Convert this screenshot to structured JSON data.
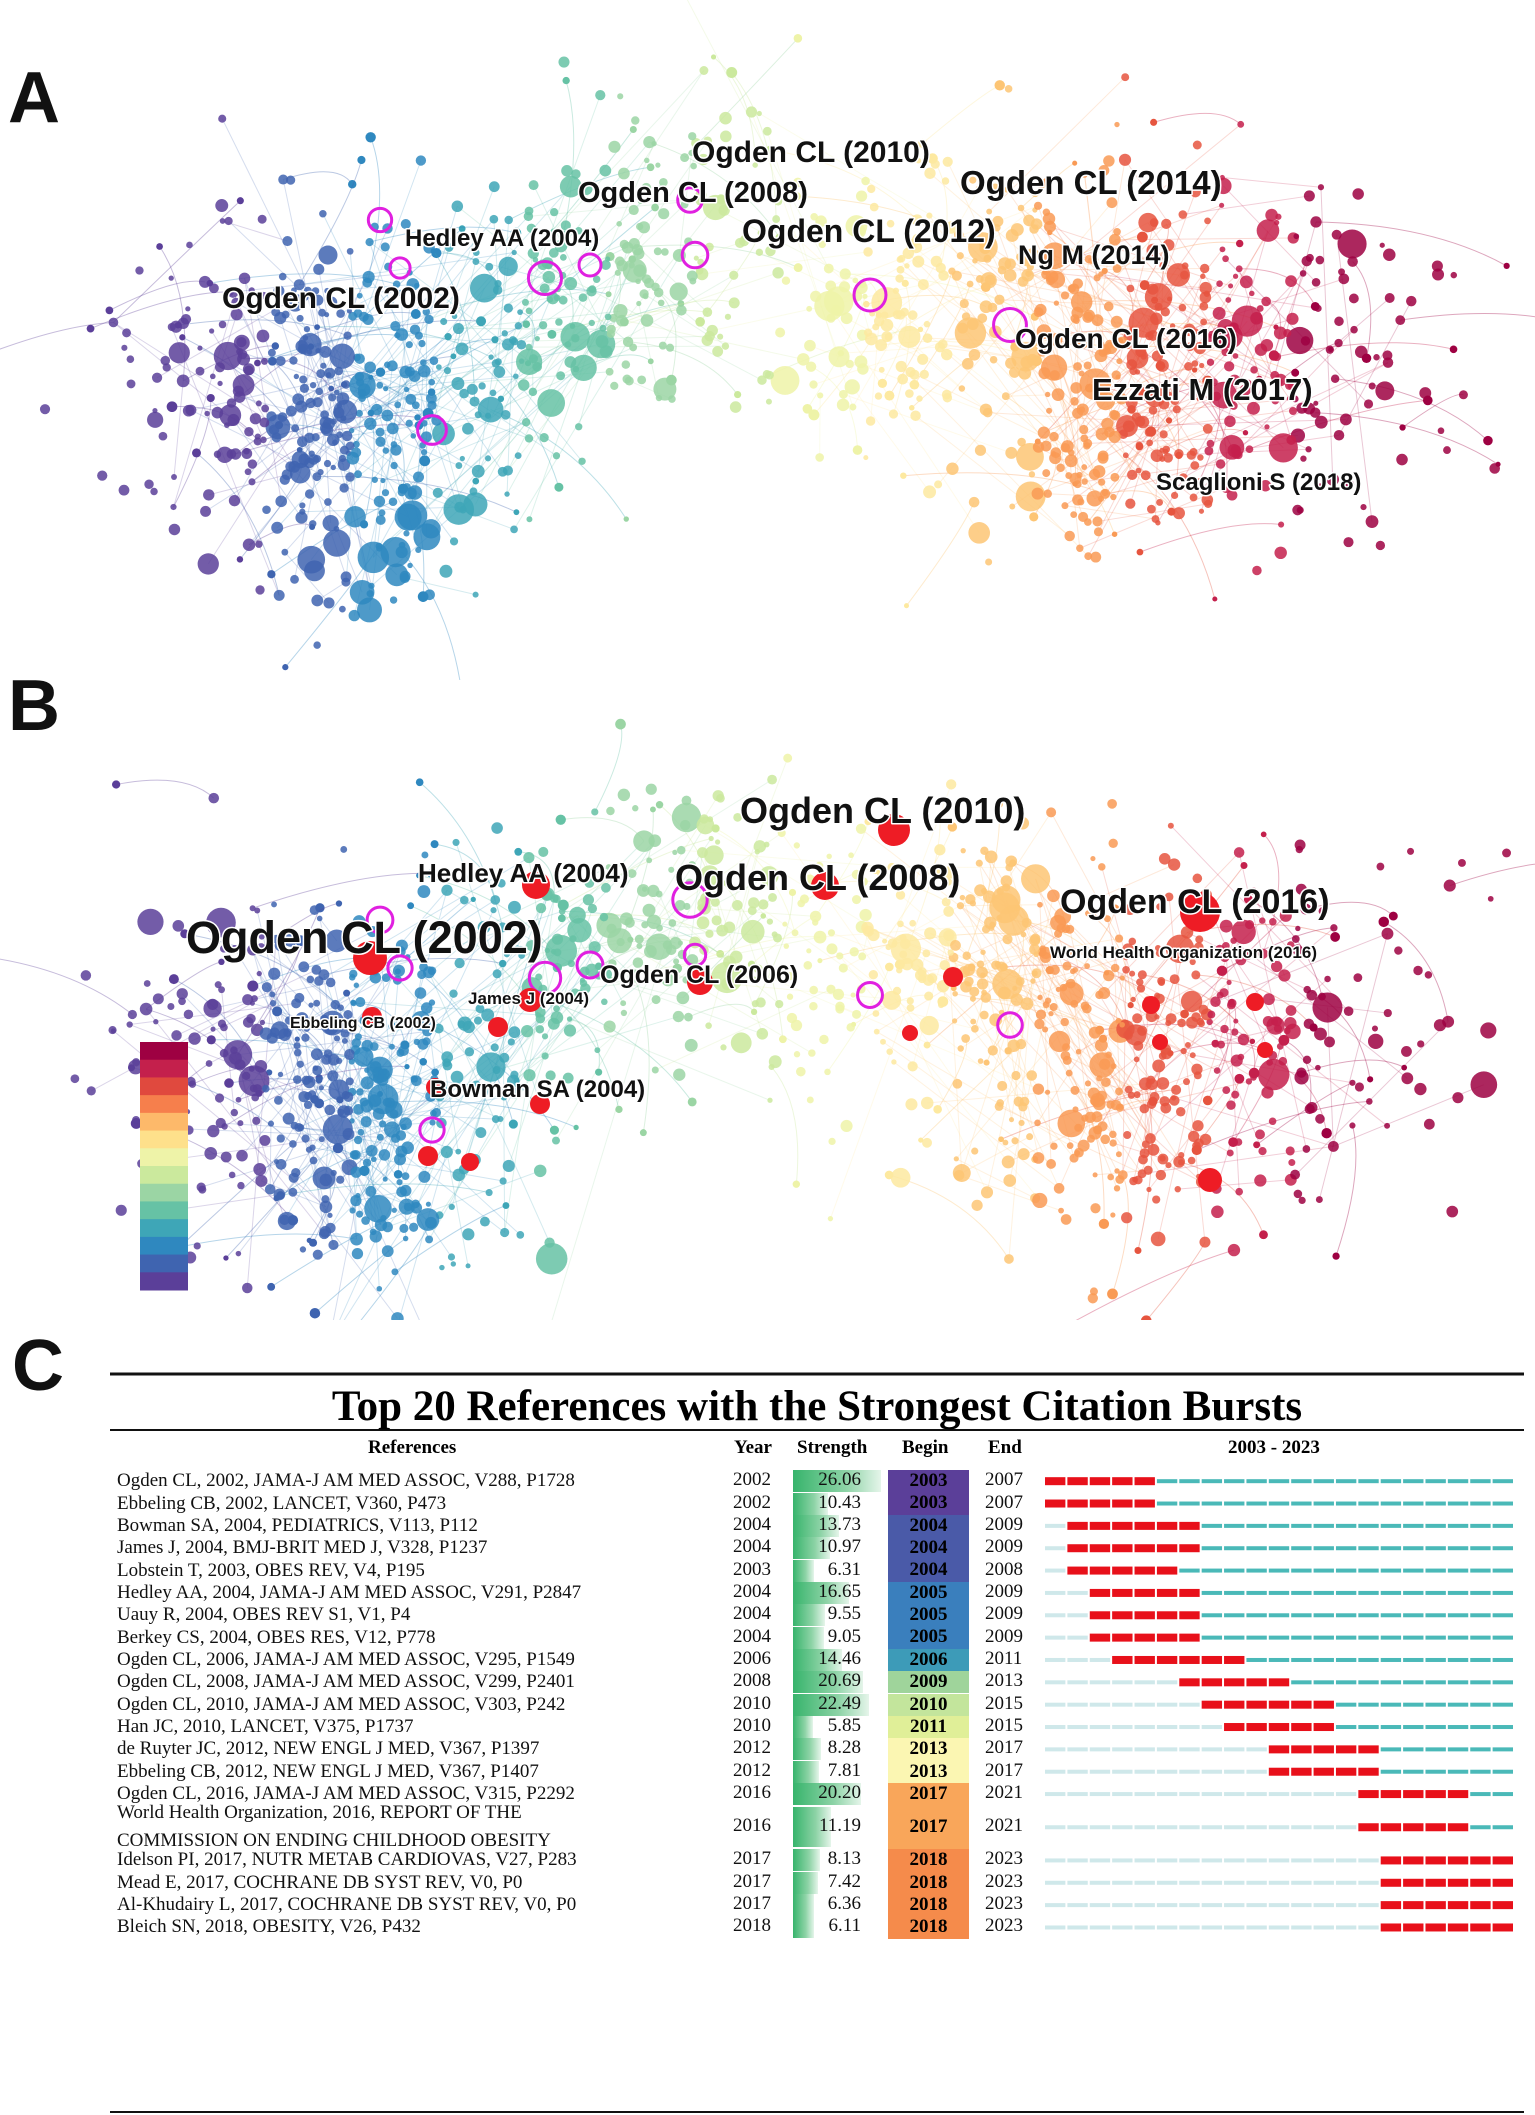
{
  "panels": {
    "a": "A",
    "b": "B",
    "c": "C"
  },
  "network_a": {
    "labels": [
      {
        "text": "Ogden CL (2010)"
      },
      {
        "text": "Ogden CL (2008)"
      },
      {
        "text": "Ogden CL (2014)"
      },
      {
        "text": "Hedley AA (2004)"
      },
      {
        "text": "Ogden CL (2012)"
      },
      {
        "text": "Ng M (2014)"
      },
      {
        "text": "Ogden CL (2002)"
      },
      {
        "text": "Ogden CL (2016)"
      },
      {
        "text": "Ezzati M (2017)"
      },
      {
        "text": "Scaglioni S (2018)"
      }
    ]
  },
  "network_b": {
    "labels": [
      {
        "text": "Ogden CL (2010)"
      },
      {
        "text": "Ogden CL (2008)"
      },
      {
        "text": "Hedley AA (2004)"
      },
      {
        "text": "Ogden CL (2016)"
      },
      {
        "text": "Ogden CL (2002)"
      },
      {
        "text": "World Health Organization (2016)"
      },
      {
        "text": "Ogden CL (2006)"
      },
      {
        "text": "James J (2004)"
      },
      {
        "text": "Ebbeling CB (2002)"
      },
      {
        "text": "Bowman SA (2004)"
      }
    ],
    "legend_colors": [
      "#5b3f99",
      "#3f64b0",
      "#2f88bf",
      "#3ea6b7",
      "#66c2a5",
      "#9bd5a4",
      "#cbe99d",
      "#eef3a8",
      "#fee08b",
      "#fdb96a",
      "#f67f4c",
      "#e0493e",
      "#c4204c",
      "#9e0142"
    ]
  },
  "chart_data": {
    "type": "table",
    "title": "Top 20 References with the Strongest Citation Bursts",
    "columns": [
      "References",
      "Year",
      "Strength",
      "Begin",
      "End",
      "2003 - 2023"
    ],
    "timeline": {
      "start": 2003,
      "end": 2023
    },
    "rows": [
      {
        "ref": "Ogden CL, 2002, JAMA-J AM MED ASSOC, V288, P1728",
        "year": "2002",
        "strength": 26.06,
        "begin": 2003,
        "end": 2007,
        "color": "#5b3f99"
      },
      {
        "ref": "Ebbeling CB, 2002, LANCET, V360, P473",
        "year": "2002",
        "strength": 10.43,
        "begin": 2003,
        "end": 2007,
        "color": "#5b3f99"
      },
      {
        "ref": "Bowman SA, 2004, PEDIATRICS, V113, P112",
        "year": "2004",
        "strength": 13.73,
        "begin": 2004,
        "end": 2009,
        "color": "#4a5aa8"
      },
      {
        "ref": "James J, 2004, BMJ-BRIT MED J, V328, P1237",
        "year": "2004",
        "strength": 10.97,
        "begin": 2004,
        "end": 2009,
        "color": "#4a5aa8"
      },
      {
        "ref": "Lobstein T, 2003, OBES REV, V4, P195",
        "year": "2003",
        "strength": 6.31,
        "begin": 2004,
        "end": 2008,
        "color": "#4a5aa8"
      },
      {
        "ref": "Hedley AA, 2004, JAMA-J AM MED ASSOC, V291, P2847",
        "year": "2004",
        "strength": 16.65,
        "begin": 2005,
        "end": 2009,
        "color": "#3a7fbd"
      },
      {
        "ref": "Uauy R, 2004, OBES REV S1, V1, P4",
        "year": "2004",
        "strength": 9.55,
        "begin": 2005,
        "end": 2009,
        "color": "#3a7fbd"
      },
      {
        "ref": "Berkey CS, 2004, OBES RES, V12, P778",
        "year": "2004",
        "strength": 9.05,
        "begin": 2005,
        "end": 2009,
        "color": "#3a7fbd"
      },
      {
        "ref": "Ogden CL, 2006, JAMA-J AM MED ASSOC, V295, P1549",
        "year": "2006",
        "strength": 14.46,
        "begin": 2006,
        "end": 2011,
        "color": "#3d9bb8"
      },
      {
        "ref": "Ogden CL, 2008, JAMA-J AM MED ASSOC, V299, P2401",
        "year": "2008",
        "strength": 20.69,
        "begin": 2009,
        "end": 2013,
        "color": "#9fd49b"
      },
      {
        "ref": "Ogden CL, 2010, JAMA-J AM MED ASSOC, V303, P242",
        "year": "2010",
        "strength": 22.49,
        "begin": 2010,
        "end": 2015,
        "color": "#c3e59c"
      },
      {
        "ref": "Han JC, 2010, LANCET, V375, P1737",
        "year": "2010",
        "strength": 5.85,
        "begin": 2011,
        "end": 2015,
        "color": "#e0ef98"
      },
      {
        "ref": "de Ruyter JC, 2012, NEW ENGL J MED, V367, P1397",
        "year": "2012",
        "strength": 8.28,
        "begin": 2013,
        "end": 2017,
        "color": "#fbf6b2"
      },
      {
        "ref": "Ebbeling CB, 2012, NEW ENGL J MED, V367, P1407",
        "year": "2012",
        "strength": 7.81,
        "begin": 2013,
        "end": 2017,
        "color": "#fbf6b2"
      },
      {
        "ref": "Ogden CL, 2016, JAMA-J AM MED ASSOC, V315, P2292",
        "year": "2016",
        "strength": 20.2,
        "begin": 2017,
        "end": 2021,
        "color": "#f9a65a"
      },
      {
        "ref": "World Health Organization, 2016, REPORT OF THE COMMISSION ON ENDING CHILDHOOD OBESITY",
        "ref_line1": "World Health Organization, 2016, REPORT OF THE",
        "ref_line2": "COMMISSION ON ENDING CHILDHOOD OBESITY",
        "year": "2016",
        "strength": 11.19,
        "begin": 2017,
        "end": 2021,
        "color": "#f9a65a"
      },
      {
        "ref": "Idelson PI, 2017, NUTR METAB CARDIOVAS, V27, P283",
        "year": "2017",
        "strength": 8.13,
        "begin": 2018,
        "end": 2023,
        "color": "#f58b4b"
      },
      {
        "ref": "Mead E, 2017, COCHRANE DB SYST REV, V0, P0",
        "year": "2017",
        "strength": 7.42,
        "begin": 2018,
        "end": 2023,
        "color": "#f58b4b"
      },
      {
        "ref": "Al-Khudairy L, 2017, COCHRANE DB SYST REV, V0, P0",
        "year": "2017",
        "strength": 6.36,
        "begin": 2018,
        "end": 2023,
        "color": "#f58b4b"
      },
      {
        "ref": "Bleich SN, 2018, OBESITY, V26, P432",
        "year": "2018",
        "strength": 6.11,
        "begin": 2018,
        "end": 2023,
        "color": "#f58b4b"
      }
    ]
  }
}
